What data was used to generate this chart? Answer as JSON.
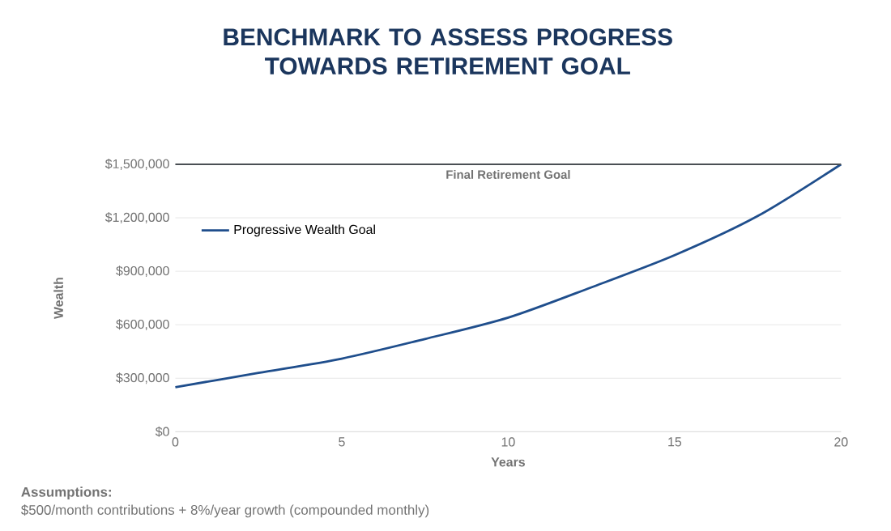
{
  "chart_data": {
    "type": "line",
    "title": "BENCHMARK TO ASSESS PROGRESS TOWARDS RETIREMENT GOAL",
    "xlabel": "Years",
    "ylabel": "Wealth",
    "x": [
      0,
      2.5,
      5,
      7.5,
      10,
      12.5,
      15,
      17.5,
      20
    ],
    "series": [
      {
        "name": "Progressive Wealth Goal",
        "color": "#1f4e8c",
        "values": [
          250000,
          330000,
          410000,
          520000,
          640000,
          810000,
          990000,
          1210000,
          1500000
        ]
      }
    ],
    "xlim": [
      0,
      20
    ],
    "xticks": [
      0,
      5,
      10,
      15,
      20
    ],
    "ylim": [
      0,
      1500000
    ],
    "yticks": [
      {
        "value": 0,
        "label": "$0"
      },
      {
        "value": 300000,
        "label": "$300,000"
      },
      {
        "value": 600000,
        "label": "$600,000"
      },
      {
        "value": 900000,
        "label": "$900,000"
      },
      {
        "value": 1200000,
        "label": "$1,200,000"
      },
      {
        "value": 1500000,
        "label": "$1,500,000"
      }
    ],
    "ref_lines": [
      {
        "axis": "y",
        "value": 1500000,
        "label": "Final Retirement Goal",
        "color": "#4a4f54"
      }
    ],
    "grid": "y",
    "legend": "top left",
    "marker": "none",
    "line_style": "solid",
    "annotations": [
      "**Assumptions:**",
      "$500/month contributions + 8%/year growth (compounded monthly)"
    ]
  }
}
